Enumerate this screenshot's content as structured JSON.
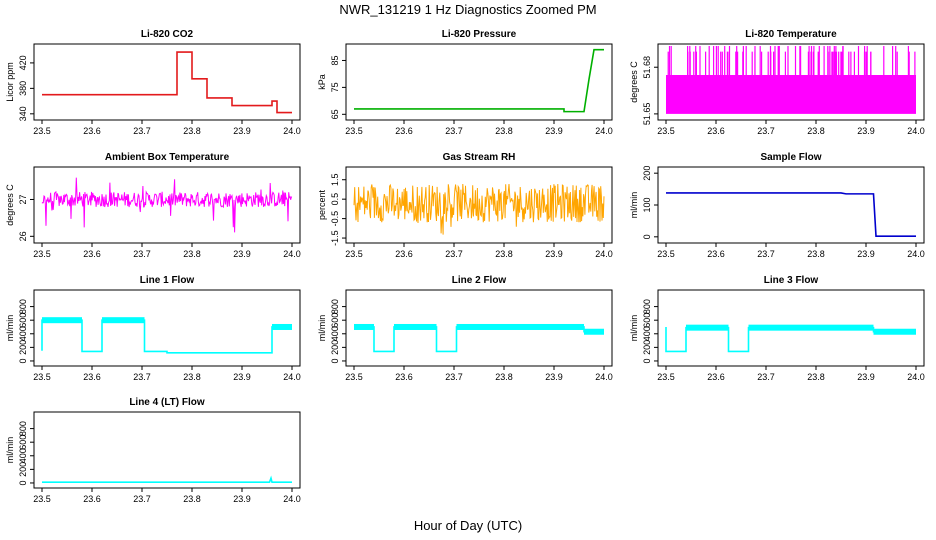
{
  "figure": {
    "title": "NWR_131219  1 Hz Diagnostics Zoomed PM",
    "xlabel": "Hour of Day (UTC)"
  },
  "chart_data": [
    {
      "type": "line",
      "title": "Li-820 CO2",
      "ylabel": "Licor ppm",
      "color": "#e31a1c",
      "xlim": [
        23.5,
        24.0
      ],
      "ylim": [
        335,
        445
      ],
      "xticks": [
        "23.5",
        "23.6",
        "23.7",
        "23.8",
        "23.9",
        "24.0"
      ],
      "yticks": [
        340,
        380,
        420
      ],
      "x": [
        23.5,
        23.77,
        23.77,
        23.8,
        23.8,
        23.83,
        23.83,
        23.88,
        23.88,
        23.96,
        23.96,
        23.97,
        23.97,
        24.0
      ],
      "y": [
        370,
        370,
        437,
        437,
        395,
        395,
        365,
        365,
        353,
        353,
        360,
        360,
        342,
        342
      ]
    },
    {
      "type": "line",
      "title": "Li-820 Pressure",
      "ylabel": "kPa",
      "color": "#00b000",
      "xlim": [
        23.5,
        24.0
      ],
      "ylim": [
        64,
        90
      ],
      "xticks": [
        "23.5",
        "23.6",
        "23.7",
        "23.8",
        "23.9",
        "24.0"
      ],
      "yticks": [
        65,
        75,
        85
      ],
      "x": [
        23.5,
        23.92,
        23.92,
        23.96,
        23.97,
        23.98,
        24.0
      ],
      "y": [
        67,
        67,
        66,
        66,
        78,
        89,
        89
      ]
    },
    {
      "type": "line",
      "title": "Li-820 Temperature",
      "ylabel": "degrees C",
      "color": "#ff00ff",
      "xlim": [
        23.5,
        24.0
      ],
      "ylim": [
        51.648,
        51.693
      ],
      "xticks": [
        "23.5",
        "23.6",
        "23.7",
        "23.8",
        "23.9",
        "24.0"
      ],
      "yticks": [
        51.65,
        51.68
      ],
      "y_levels": [
        51.65,
        51.675,
        51.69
      ]
    },
    {
      "type": "line",
      "title": "Ambient Box Temperature",
      "ylabel": "degrees C",
      "color": "#ff00ff",
      "xlim": [
        23.5,
        24.0
      ],
      "ylim": [
        25.9,
        27.8
      ],
      "xticks": [
        "23.5",
        "23.6",
        "23.7",
        "23.8",
        "23.9",
        "24.0"
      ],
      "yticks": [
        26.0,
        27.0
      ],
      "mean": 27.0
    },
    {
      "type": "line",
      "title": "Gas Stream RH",
      "ylabel": "percent",
      "color": "#ffa500",
      "xlim": [
        23.5,
        24.0
      ],
      "ylim": [
        -1.6,
        2.0
      ],
      "xticks": [
        "23.5",
        "23.6",
        "23.7",
        "23.8",
        "23.9",
        "24.0"
      ],
      "yticks": [
        -1.5,
        -0.5,
        0.5,
        1.5
      ],
      "mean": 0.3
    },
    {
      "type": "line",
      "title": "Sample Flow",
      "ylabel": "ml/min",
      "color": "#0000cd",
      "xlim": [
        23.5,
        24.0
      ],
      "ylim": [
        -10,
        210
      ],
      "xticks": [
        "23.5",
        "23.6",
        "23.7",
        "23.8",
        "23.9",
        "24.0"
      ],
      "yticks": [
        0,
        100,
        200
      ],
      "x": [
        23.5,
        23.85,
        23.86,
        23.915,
        23.92,
        24.0
      ],
      "y": [
        138,
        138,
        135,
        135,
        2,
        2
      ]
    },
    {
      "type": "line",
      "title": "Line 1 Flow",
      "ylabel": "ml/min",
      "color": "#00ffff",
      "xlim": [
        23.5,
        24.0
      ],
      "ylim": [
        -30,
        1000
      ],
      "xticks": [
        "23.5",
        "23.6",
        "23.7",
        "23.8",
        "23.9",
        "24.0"
      ],
      "yticks": [
        0,
        200,
        400,
        600,
        800
      ],
      "x": [
        23.5,
        23.5,
        23.58,
        23.58,
        23.62,
        23.62,
        23.705,
        23.705,
        23.75,
        23.75,
        23.96,
        23.96,
        24.0
      ],
      "y": [
        150,
        600,
        600,
        140,
        140,
        600,
        600,
        140,
        140,
        120,
        120,
        500,
        500
      ]
    },
    {
      "type": "line",
      "title": "Line 2 Flow",
      "ylabel": "ml/min",
      "color": "#00ffff",
      "xlim": [
        23.5,
        24.0
      ],
      "ylim": [
        -30,
        1000
      ],
      "xticks": [
        "23.5",
        "23.6",
        "23.7",
        "23.8",
        "23.9",
        "24.0"
      ],
      "yticks": [
        0,
        200,
        400,
        600,
        800
      ],
      "x": [
        23.5,
        23.54,
        23.54,
        23.58,
        23.58,
        23.665,
        23.665,
        23.705,
        23.705,
        23.96,
        23.96,
        24.0
      ],
      "y": [
        500,
        500,
        140,
        140,
        500,
        500,
        140,
        140,
        500,
        500,
        430,
        430
      ]
    },
    {
      "type": "line",
      "title": "Line 3 Flow",
      "ylabel": "ml/min",
      "color": "#00ffff",
      "xlim": [
        23.5,
        24.0
      ],
      "ylim": [
        -30,
        1000
      ],
      "xticks": [
        "23.5",
        "23.6",
        "23.7",
        "23.8",
        "23.9",
        "24.0"
      ],
      "yticks": [
        0,
        200,
        400,
        600,
        800
      ],
      "x": [
        23.5,
        23.5,
        23.54,
        23.54,
        23.625,
        23.625,
        23.665,
        23.665,
        23.915,
        23.915,
        24.0
      ],
      "y": [
        500,
        140,
        140,
        490,
        490,
        140,
        140,
        490,
        490,
        430,
        430
      ]
    },
    {
      "type": "line",
      "title": "Line 4 (LT) Flow",
      "ylabel": "ml/min",
      "color": "#00ffff",
      "xlim": [
        23.5,
        24.0
      ],
      "ylim": [
        -30,
        1000
      ],
      "xticks": [
        "23.5",
        "23.6",
        "23.7",
        "23.8",
        "23.9",
        "24.0"
      ],
      "yticks": [
        0,
        200,
        400,
        600,
        800
      ],
      "x": [
        23.5,
        23.955,
        23.958,
        23.96,
        24.0
      ],
      "y": [
        12,
        12,
        70,
        12,
        12
      ]
    }
  ]
}
